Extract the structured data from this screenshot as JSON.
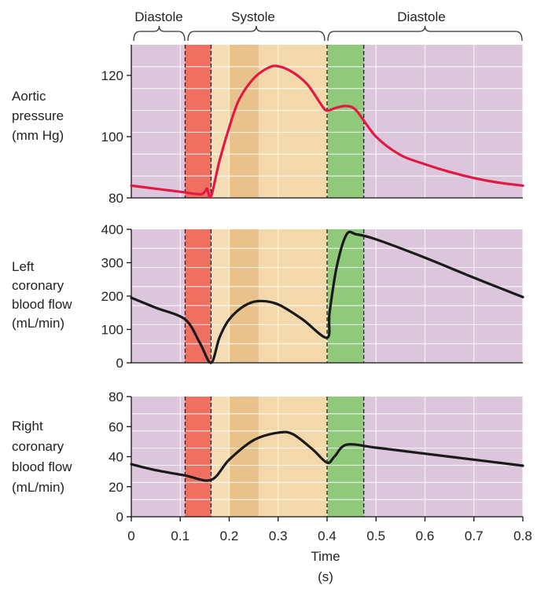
{
  "phase_labels": {
    "left": "Diastole",
    "middle": "Systole",
    "right": "Diastole"
  },
  "colors": {
    "diastole_bg": "#dcc6dc",
    "isovolumic_contraction": "#ef6f61",
    "rapid_ejection": "#e9c18a",
    "slow_ejection": "#f2d8ab",
    "early_ejection": "#f4ddb5",
    "isovolumic_relaxation": "#90c97a",
    "aortic_line": "#e01a45",
    "coronary_line": "#1a1a1a"
  },
  "phase_bands_s": {
    "isovolumic_contraction": [
      0.11,
      0.163
    ],
    "early_ejection": [
      0.163,
      0.2
    ],
    "rapid_ejection": [
      0.2,
      0.26
    ],
    "slow_ejection": [
      0.26,
      0.4
    ],
    "isovolumic_relaxation": [
      0.4,
      0.475
    ]
  },
  "dashed_lines_s": [
    0.11,
    0.163,
    0.4,
    0.475
  ],
  "xaxis": {
    "label": "Time",
    "unit": "(s)",
    "ticks": [
      "0",
      "0.1",
      "0.2",
      "0.3",
      "0.4",
      "0.5",
      "0.6",
      "0.7",
      "0.8"
    ]
  },
  "chart_data": [
    {
      "type": "line",
      "ylabel": [
        "Aortic",
        "pressure",
        "(mm Hg)"
      ],
      "ylim": [
        80,
        130
      ],
      "yticks": [
        "80",
        "100",
        "120"
      ],
      "ytick_values": [
        80,
        100,
        120
      ],
      "xlim": [
        0,
        0.8
      ],
      "grid": true,
      "series": [
        {
          "x": [
            0,
            0.05,
            0.1,
            0.14,
            0.15,
            0.155,
            0.163,
            0.18,
            0.2,
            0.22,
            0.25,
            0.28,
            0.3,
            0.33,
            0.36,
            0.39,
            0.4,
            0.42,
            0.44,
            0.46,
            0.5,
            0.55,
            0.6,
            0.65,
            0.7,
            0.75,
            0.8
          ],
          "y": [
            84,
            83,
            82,
            81.2,
            82,
            83,
            80.5,
            92,
            103,
            112,
            119,
            122.5,
            123,
            121,
            117,
            110,
            108.5,
            109.5,
            110,
            108.5,
            100,
            94,
            91,
            88.5,
            86.5,
            85,
            84
          ]
        }
      ]
    },
    {
      "type": "line",
      "ylabel": [
        "Left",
        "coronary",
        "blood flow",
        "(mL/min)"
      ],
      "ylim": [
        0,
        400
      ],
      "yticks": [
        "0",
        "100",
        "200",
        "300",
        "400"
      ],
      "ytick_values": [
        0,
        100,
        200,
        300,
        400
      ],
      "xlim": [
        0,
        0.8
      ],
      "grid": true,
      "series": [
        {
          "x": [
            0,
            0.05,
            0.11,
            0.14,
            0.163,
            0.18,
            0.2,
            0.23,
            0.26,
            0.3,
            0.35,
            0.4,
            0.405,
            0.42,
            0.44,
            0.46,
            0.5,
            0.6,
            0.7,
            0.8
          ],
          "y": [
            195,
            165,
            130,
            60,
            0,
            75,
            130,
            170,
            185,
            175,
            130,
            75,
            150,
            290,
            385,
            385,
            370,
            315,
            255,
            197
          ]
        }
      ]
    },
    {
      "type": "line",
      "ylabel": [
        "Right",
        "coronary",
        "blood flow",
        "(mL/min)"
      ],
      "ylim": [
        0,
        80
      ],
      "yticks": [
        "0",
        "20",
        "40",
        "60",
        "80"
      ],
      "ytick_values": [
        0,
        20,
        40,
        60,
        80
      ],
      "xlim": [
        0,
        0.8
      ],
      "grid": true,
      "series": [
        {
          "x": [
            0,
            0.05,
            0.11,
            0.163,
            0.2,
            0.25,
            0.3,
            0.33,
            0.37,
            0.4,
            0.415,
            0.44,
            0.5,
            0.6,
            0.7,
            0.8
          ],
          "y": [
            35,
            31,
            27.5,
            24.5,
            38,
            51,
            56,
            55,
            45,
            36,
            40,
            48,
            46,
            42,
            38,
            34
          ]
        }
      ]
    }
  ]
}
